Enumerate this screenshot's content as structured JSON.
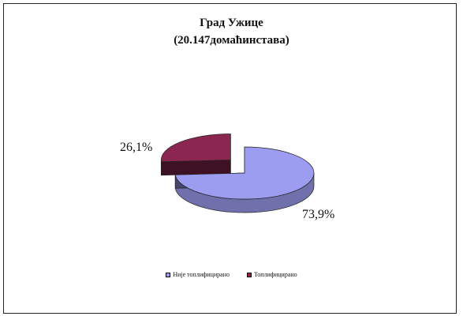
{
  "chart_data": {
    "type": "pie",
    "title": "Град Ужице",
    "subtitle": "(20.147домаћинстава)",
    "slices": [
      {
        "name": "Није топлифицирано",
        "value": 73.9,
        "label": "73,9%",
        "color": "#9c9cf0"
      },
      {
        "name": "Топлифицирано",
        "value": 26.1,
        "label": "26,1%",
        "color": "#8a2650"
      }
    ],
    "legend_position": "bottom",
    "style": "3d-exploded"
  }
}
